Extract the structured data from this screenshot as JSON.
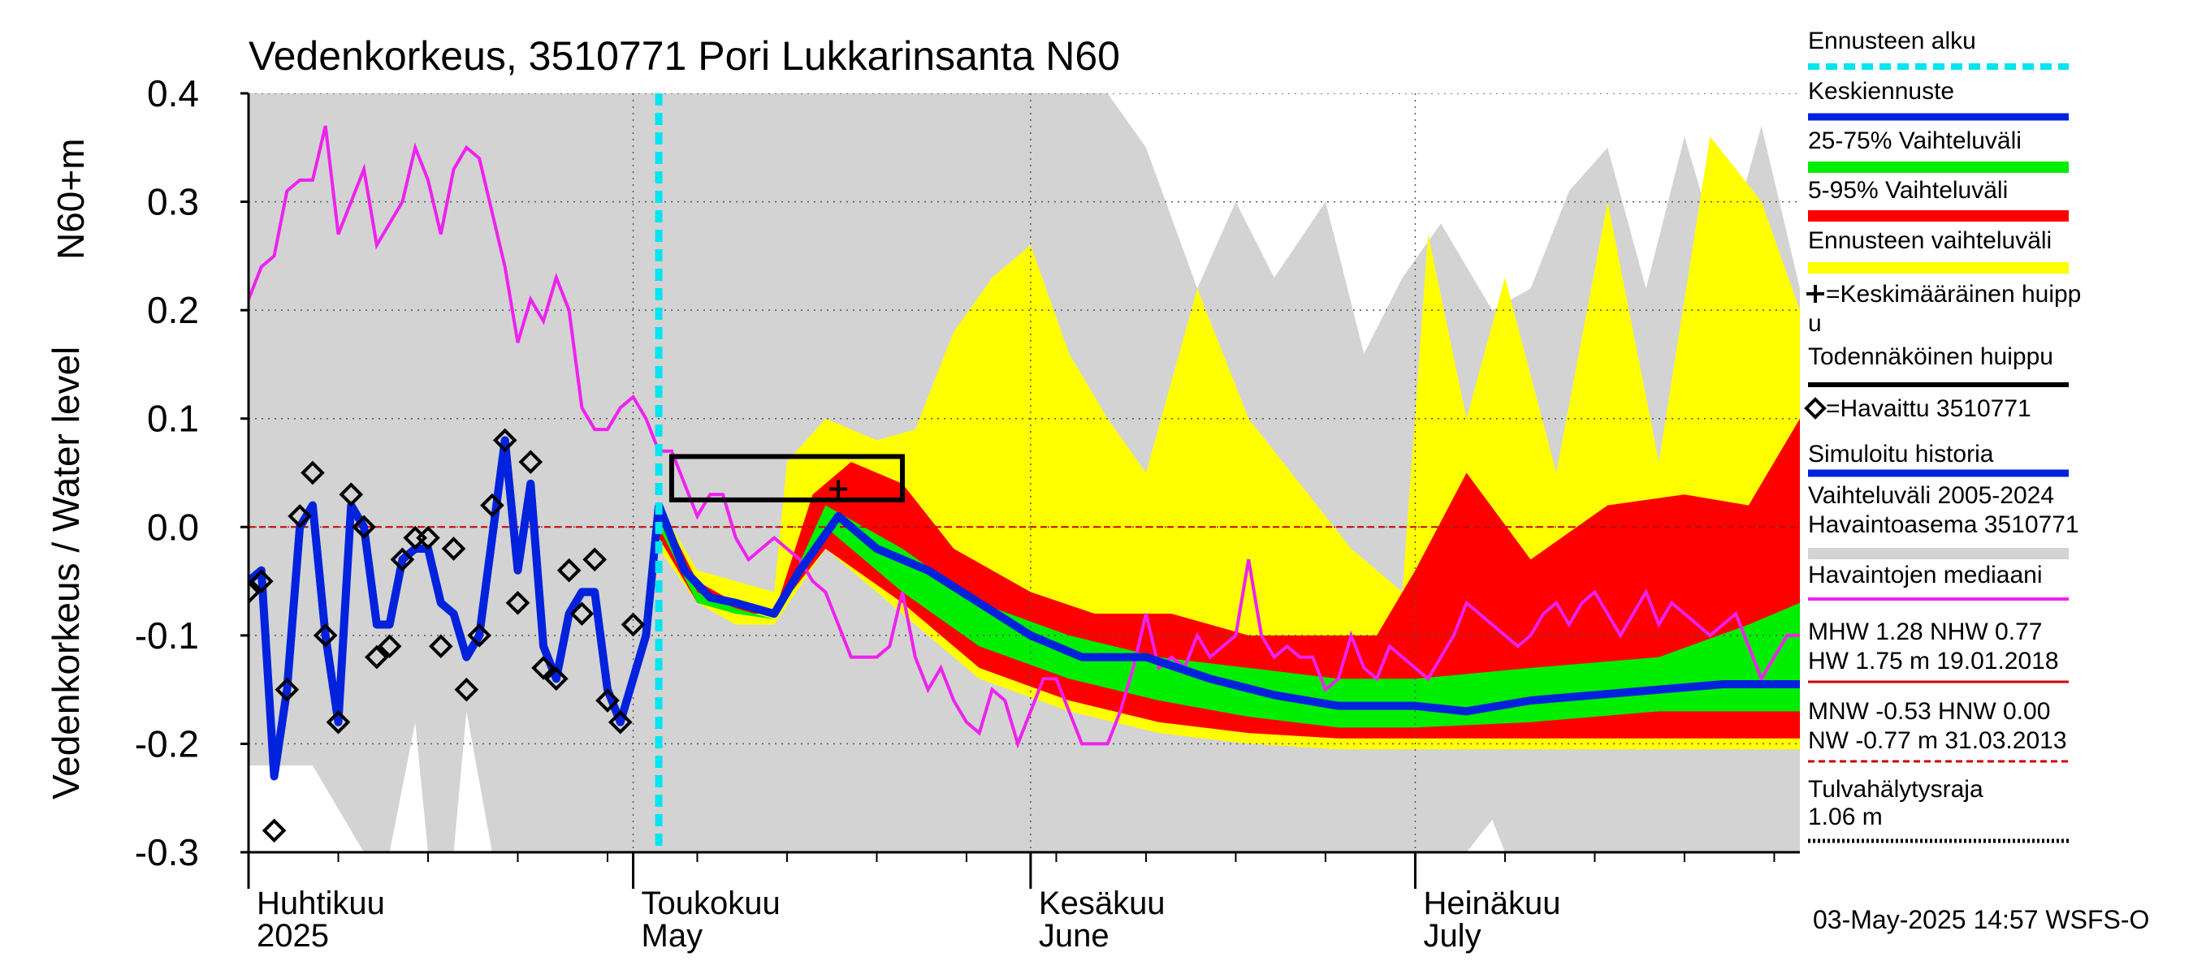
{
  "chart_data": {
    "type": "area",
    "title": "Vedenkorkeus, 3510771 Pori Lukkarinsanta N60",
    "ylabel_top": "N60+m",
    "ylabel_bottom": "Vedenkorkeus / Water level",
    "ylim": [
      -0.3,
      0.4
    ],
    "yticks": [
      "0.4",
      "0.3",
      "0.2",
      "0.1",
      "0.0",
      "-0.1",
      "-0.2",
      "-0.3"
    ],
    "ytick_values": [
      0.4,
      0.3,
      0.2,
      0.1,
      0.0,
      -0.1,
      -0.2,
      -0.3
    ],
    "x_start": "2025-04-01",
    "x_end": "2025-07-31",
    "months": [
      {
        "fi": "Huhtikuu",
        "en": "2025",
        "date": "2025-04-01"
      },
      {
        "fi": "Toukokuu",
        "en": "May",
        "date": "2025-05-01"
      },
      {
        "fi": "Kesäkuu",
        "en": "June",
        "date": "2025-06-01"
      },
      {
        "fi": "Heinäkuu",
        "en": "July",
        "date": "2025-07-01"
      }
    ],
    "forecast_start": "2025-05-03",
    "reference_level": 0.0,
    "probable_peak_box": {
      "date_from": "2025-05-04",
      "date_to": "2025-05-22",
      "low": 0.025,
      "high": 0.065
    },
    "mean_peak": {
      "date": "2025-05-17",
      "value": 0.035
    },
    "historical_range_upper": {
      "dates": [
        "2025-04-01",
        "2025-04-10",
        "2025-04-20",
        "2025-04-30",
        "2025-05-10",
        "2025-05-20",
        "2025-05-31",
        "2025-06-07",
        "2025-06-10",
        "2025-06-14",
        "2025-06-17",
        "2025-06-20",
        "2025-06-24",
        "2025-06-27",
        "2025-06-30",
        "2025-07-03",
        "2025-07-07",
        "2025-07-10",
        "2025-07-13",
        "2025-07-16",
        "2025-07-19",
        "2025-07-22",
        "2025-07-25",
        "2025-07-28",
        "2025-07-31"
      ],
      "values": [
        0.4,
        0.4,
        0.4,
        0.4,
        0.4,
        0.4,
        0.4,
        0.4,
        0.35,
        0.22,
        0.3,
        0.23,
        0.3,
        0.16,
        0.23,
        0.28,
        0.2,
        0.22,
        0.31,
        0.35,
        0.22,
        0.36,
        0.24,
        0.37,
        0.22
      ]
    },
    "historical_range_lower": {
      "dates": [
        "2025-04-01",
        "2025-04-06",
        "2025-04-08",
        "2025-04-10",
        "2025-04-12",
        "2025-04-14",
        "2025-04-15",
        "2025-04-17",
        "2025-04-18",
        "2025-04-20",
        "2025-07-03",
        "2025-07-05",
        "2025-07-07",
        "2025-07-08",
        "2025-07-31"
      ],
      "values": [
        -0.22,
        -0.22,
        -0.26,
        -0.3,
        -0.3,
        -0.18,
        -0.3,
        -0.3,
        -0.17,
        -0.3,
        -0.3,
        -0.3,
        -0.27,
        -0.3,
        -0.3
      ]
    },
    "forecast_range_upper": {
      "dates": [
        "2025-05-03",
        "2025-05-06",
        "2025-05-09",
        "2025-05-12",
        "2025-05-13",
        "2025-05-16",
        "2025-05-20",
        "2025-05-23",
        "2025-05-26",
        "2025-05-29",
        "2025-06-01",
        "2025-06-04",
        "2025-06-07",
        "2025-06-10",
        "2025-06-14",
        "2025-06-18",
        "2025-06-22",
        "2025-06-26",
        "2025-06-30",
        "2025-07-02",
        "2025-07-05",
        "2025-07-08",
        "2025-07-12",
        "2025-07-16",
        "2025-07-20",
        "2025-07-24",
        "2025-07-28",
        "2025-07-31"
      ],
      "values": [
        0.02,
        -0.04,
        -0.05,
        -0.06,
        0.06,
        0.1,
        0.08,
        0.09,
        0.18,
        0.23,
        0.26,
        0.16,
        0.1,
        0.05,
        0.22,
        0.1,
        0.04,
        -0.02,
        -0.06,
        0.27,
        0.1,
        0.23,
        0.05,
        0.3,
        0.06,
        0.36,
        0.3,
        0.2
      ]
    },
    "forecast_range_lower": {
      "dates": [
        "2025-05-03",
        "2025-05-06",
        "2025-05-09",
        "2025-05-12",
        "2025-05-16",
        "2025-05-22",
        "2025-05-28",
        "2025-06-04",
        "2025-06-11",
        "2025-06-18",
        "2025-06-25",
        "2025-07-01",
        "2025-07-10",
        "2025-07-20",
        "2025-07-31"
      ],
      "values": [
        -0.02,
        -0.07,
        -0.09,
        -0.09,
        -0.02,
        -0.08,
        -0.14,
        -0.17,
        -0.19,
        -0.2,
        -0.205,
        -0.205,
        -0.205,
        -0.205,
        -0.205
      ]
    },
    "p5_95_upper": {
      "dates": [
        "2025-05-03",
        "2025-05-06",
        "2025-05-09",
        "2025-05-12",
        "2025-05-15",
        "2025-05-18",
        "2025-05-22",
        "2025-05-26",
        "2025-06-01",
        "2025-06-06",
        "2025-06-12",
        "2025-06-18",
        "2025-06-24",
        "2025-06-28",
        "2025-07-01",
        "2025-07-05",
        "2025-07-10",
        "2025-07-16",
        "2025-07-22",
        "2025-07-27",
        "2025-07-31"
      ],
      "values": [
        0.02,
        -0.05,
        -0.07,
        -0.08,
        0.03,
        0.06,
        0.04,
        -0.02,
        -0.06,
        -0.08,
        -0.08,
        -0.1,
        -0.1,
        -0.1,
        -0.04,
        0.05,
        -0.03,
        0.02,
        0.03,
        0.02,
        0.1
      ]
    },
    "p5_95_lower": {
      "dates": [
        "2025-05-03",
        "2025-05-06",
        "2025-05-09",
        "2025-05-12",
        "2025-05-16",
        "2025-05-22",
        "2025-05-28",
        "2025-06-04",
        "2025-06-11",
        "2025-06-18",
        "2025-06-25",
        "2025-07-01",
        "2025-07-10",
        "2025-07-20",
        "2025-07-31"
      ],
      "values": [
        -0.01,
        -0.07,
        -0.08,
        -0.08,
        -0.02,
        -0.07,
        -0.13,
        -0.16,
        -0.18,
        -0.19,
        -0.195,
        -0.195,
        -0.195,
        -0.195,
        -0.195
      ]
    },
    "p25_75_upper": {
      "dates": [
        "2025-05-03",
        "2025-05-06",
        "2025-05-09",
        "2025-05-12",
        "2025-05-16",
        "2025-05-22",
        "2025-05-28",
        "2025-06-04",
        "2025-06-11",
        "2025-06-18",
        "2025-06-25",
        "2025-07-01",
        "2025-07-10",
        "2025-07-20",
        "2025-07-27",
        "2025-07-31"
      ],
      "values": [
        0.02,
        -0.06,
        -0.075,
        -0.085,
        0.02,
        -0.02,
        -0.07,
        -0.1,
        -0.12,
        -0.13,
        -0.14,
        -0.14,
        -0.13,
        -0.12,
        -0.09,
        -0.07
      ]
    },
    "p25_75_lower": {
      "dates": [
        "2025-05-03",
        "2025-05-06",
        "2025-05-09",
        "2025-05-12",
        "2025-05-16",
        "2025-05-22",
        "2025-05-28",
        "2025-06-04",
        "2025-06-11",
        "2025-06-18",
        "2025-06-25",
        "2025-07-01",
        "2025-07-10",
        "2025-07-20",
        "2025-07-31"
      ],
      "values": [
        0.0,
        -0.07,
        -0.08,
        -0.085,
        0.0,
        -0.06,
        -0.11,
        -0.14,
        -0.16,
        -0.175,
        -0.185,
        -0.185,
        -0.18,
        -0.17,
        -0.17
      ]
    },
    "mean_forecast": {
      "dates": [
        "2025-05-03",
        "2025-05-05",
        "2025-05-07",
        "2025-05-09",
        "2025-05-12",
        "2025-05-14",
        "2025-05-17",
        "2025-05-20",
        "2025-05-24",
        "2025-05-28",
        "2025-06-01",
        "2025-06-05",
        "2025-06-10",
        "2025-06-15",
        "2025-06-20",
        "2025-06-25",
        "2025-07-01",
        "2025-07-05",
        "2025-07-10",
        "2025-07-15",
        "2025-07-20",
        "2025-07-25",
        "2025-07-31"
      ],
      "values": [
        0.02,
        -0.04,
        -0.065,
        -0.07,
        -0.08,
        -0.04,
        0.01,
        -0.02,
        -0.04,
        -0.07,
        -0.1,
        -0.12,
        -0.12,
        -0.14,
        -0.155,
        -0.165,
        -0.165,
        -0.17,
        -0.16,
        -0.155,
        -0.15,
        -0.145,
        -0.145
      ]
    },
    "simulated_history": {
      "dates": [
        "2025-04-01",
        "2025-04-02",
        "2025-04-03",
        "2025-04-04",
        "2025-04-05",
        "2025-04-06",
        "2025-04-07",
        "2025-04-08",
        "2025-04-09",
        "2025-04-10",
        "2025-04-11",
        "2025-04-12",
        "2025-04-13",
        "2025-04-14",
        "2025-04-15",
        "2025-04-16",
        "2025-04-17",
        "2025-04-18",
        "2025-04-19",
        "2025-04-20",
        "2025-04-21",
        "2025-04-22",
        "2025-04-23",
        "2025-04-24",
        "2025-04-25",
        "2025-04-26",
        "2025-04-27",
        "2025-04-28",
        "2025-04-29",
        "2025-04-30",
        "2025-05-01",
        "2025-05-02",
        "2025-05-03"
      ],
      "values": [
        -0.05,
        -0.04,
        -0.23,
        -0.15,
        0.0,
        0.02,
        -0.1,
        -0.18,
        0.02,
        0.0,
        -0.09,
        -0.09,
        -0.03,
        -0.02,
        -0.02,
        -0.07,
        -0.08,
        -0.12,
        -0.1,
        -0.01,
        0.08,
        -0.04,
        0.04,
        -0.11,
        -0.14,
        -0.08,
        -0.06,
        -0.06,
        -0.15,
        -0.18,
        -0.14,
        -0.1,
        0.02
      ]
    },
    "observed": {
      "dates": [
        "2025-04-01",
        "2025-04-02",
        "2025-04-03",
        "2025-04-04",
        "2025-04-05",
        "2025-04-06",
        "2025-04-07",
        "2025-04-08",
        "2025-04-09",
        "2025-04-10",
        "2025-04-11",
        "2025-04-12",
        "2025-04-13",
        "2025-04-14",
        "2025-04-15",
        "2025-04-16",
        "2025-04-17",
        "2025-04-18",
        "2025-04-19",
        "2025-04-20",
        "2025-04-21",
        "2025-04-22",
        "2025-04-23",
        "2025-04-24",
        "2025-04-25",
        "2025-04-26",
        "2025-04-27",
        "2025-04-28",
        "2025-04-29",
        "2025-04-30",
        "2025-05-01"
      ],
      "values": [
        -0.06,
        -0.05,
        -0.28,
        -0.15,
        0.01,
        0.05,
        -0.1,
        -0.18,
        0.03,
        0.0,
        -0.12,
        -0.11,
        -0.03,
        -0.01,
        -0.01,
        -0.11,
        -0.02,
        -0.15,
        -0.1,
        0.02,
        0.08,
        -0.07,
        0.06,
        -0.13,
        -0.14,
        -0.04,
        -0.08,
        -0.03,
        -0.16,
        -0.18,
        -0.09
      ]
    },
    "observations_median": {
      "dates": [
        "2025-04-01",
        "2025-04-02",
        "2025-04-03",
        "2025-04-04",
        "2025-04-05",
        "2025-04-06",
        "2025-04-07",
        "2025-04-08",
        "2025-04-09",
        "2025-04-10",
        "2025-04-11",
        "2025-04-12",
        "2025-04-13",
        "2025-04-14",
        "2025-04-15",
        "2025-04-16",
        "2025-04-17",
        "2025-04-18",
        "2025-04-19",
        "2025-04-20",
        "2025-04-21",
        "2025-04-22",
        "2025-04-23",
        "2025-04-24",
        "2025-04-25",
        "2025-04-26",
        "2025-04-27",
        "2025-04-28",
        "2025-04-29",
        "2025-04-30",
        "2025-05-01",
        "2025-05-02",
        "2025-05-03",
        "2025-05-04",
        "2025-05-05",
        "2025-05-06",
        "2025-05-07",
        "2025-05-08",
        "2025-05-09",
        "2025-05-10",
        "2025-05-11",
        "2025-05-12",
        "2025-05-13",
        "2025-05-14",
        "2025-05-15",
        "2025-05-16",
        "2025-05-17",
        "2025-05-18",
        "2025-05-19",
        "2025-05-20",
        "2025-05-21",
        "2025-05-22",
        "2025-05-23",
        "2025-05-24",
        "2025-05-25",
        "2025-05-26",
        "2025-05-27",
        "2025-05-28",
        "2025-05-29",
        "2025-05-30",
        "2025-05-31",
        "2025-06-01",
        "2025-06-02",
        "2025-06-03",
        "2025-06-04",
        "2025-06-05",
        "2025-06-06",
        "2025-06-07",
        "2025-06-08",
        "2025-06-09",
        "2025-06-10",
        "2025-06-11",
        "2025-06-12",
        "2025-06-13",
        "2025-06-14",
        "2025-06-15",
        "2025-06-16",
        "2025-06-17",
        "2025-06-18",
        "2025-06-19",
        "2025-06-20",
        "2025-06-21",
        "2025-06-22",
        "2025-06-23",
        "2025-06-24",
        "2025-06-25",
        "2025-06-26",
        "2025-06-27",
        "2025-06-28",
        "2025-06-29",
        "2025-06-30",
        "2025-07-01",
        "2025-07-02",
        "2025-07-03",
        "2025-07-04",
        "2025-07-05",
        "2025-07-06",
        "2025-07-07",
        "2025-07-08",
        "2025-07-09",
        "2025-07-10",
        "2025-07-11",
        "2025-07-12",
        "2025-07-13",
        "2025-07-14",
        "2025-07-15",
        "2025-07-16",
        "2025-07-17",
        "2025-07-18",
        "2025-07-19",
        "2025-07-20",
        "2025-07-21",
        "2025-07-22",
        "2025-07-23",
        "2025-07-24",
        "2025-07-25",
        "2025-07-26",
        "2025-07-27",
        "2025-07-28",
        "2025-07-29",
        "2025-07-30",
        "2025-07-31"
      ],
      "values": [
        0.21,
        0.24,
        0.25,
        0.31,
        0.32,
        0.32,
        0.37,
        0.27,
        0.3,
        0.33,
        0.26,
        0.28,
        0.3,
        0.35,
        0.32,
        0.27,
        0.33,
        0.35,
        0.34,
        0.29,
        0.24,
        0.17,
        0.21,
        0.19,
        0.23,
        0.2,
        0.11,
        0.09,
        0.09,
        0.11,
        0.12,
        0.1,
        0.07,
        0.07,
        0.04,
        0.01,
        0.03,
        0.03,
        -0.01,
        -0.03,
        -0.02,
        -0.01,
        -0.02,
        -0.03,
        -0.05,
        -0.06,
        -0.09,
        -0.12,
        -0.12,
        -0.12,
        -0.11,
        -0.06,
        -0.12,
        -0.15,
        -0.13,
        -0.16,
        -0.18,
        -0.19,
        -0.15,
        -0.16,
        -0.2,
        -0.17,
        -0.14,
        -0.14,
        -0.17,
        -0.2,
        -0.2,
        -0.2,
        -0.17,
        -0.13,
        -0.08,
        -0.13,
        -0.12,
        -0.13,
        -0.1,
        -0.12,
        -0.11,
        -0.1,
        -0.03,
        -0.1,
        -0.12,
        -0.11,
        -0.12,
        -0.12,
        -0.15,
        -0.14,
        -0.1,
        -0.13,
        -0.14,
        -0.11,
        -0.12,
        -0.13,
        -0.14,
        -0.12,
        -0.1,
        -0.07,
        -0.08,
        -0.09,
        -0.1,
        -0.11,
        -0.1,
        -0.08,
        -0.07,
        -0.09,
        -0.07,
        -0.06,
        -0.08,
        -0.1,
        -0.08,
        -0.06,
        -0.09,
        -0.07,
        -0.08,
        -0.09,
        -0.1,
        -0.09,
        -0.08,
        -0.11,
        -0.14,
        -0.12,
        -0.1,
        -0.1
      ]
    },
    "colors": {
      "historical_range": "#d3d3d3",
      "forecast_range": "#ffff00",
      "p5_95": "#ff0000",
      "p25_75": "#00ee00",
      "mean_forecast": "#0022dd",
      "simulated_history": "#0022dd",
      "median": "#ee22ee",
      "forecast_start": "#00e5f0",
      "reference_line": "#cc0000"
    }
  },
  "legend": {
    "items": [
      {
        "label": "Ennusteen alku",
        "style": "dashed-cyan"
      },
      {
        "label": "Keskiennuste",
        "style": "blue"
      },
      {
        "label": "25-75% Vaihteluväli",
        "style": "green"
      },
      {
        "label": "5-95% Vaihteluväli",
        "style": "red"
      },
      {
        "label": "Ennusteen vaihteluväli",
        "style": "yellow"
      },
      {
        "label": "=Keskimääräinen huipp",
        "label2": "u",
        "style": "plus"
      },
      {
        "label": "Todennäköinen huippu",
        "style": "black"
      },
      {
        "label": "=Havaittu 3510771",
        "style": "diamond"
      },
      {
        "label": "Simuloitu historia",
        "style": "blue"
      },
      {
        "label": "Vaihteluväli 2005-2024",
        "label2": " Havaintoasema 3510771",
        "style": "gray"
      },
      {
        "label": "Havaintojen mediaani",
        "style": "magenta"
      }
    ],
    "stats1": {
      "line1": "MHW   1.28 NHW   0.77",
      "line2": "HW   1.75 m 19.01.2018"
    },
    "stats2": {
      "line1": "MNW  -0.53 HNW   0.00",
      "line2": "NW  -0.77 m 31.03.2013"
    },
    "flood": {
      "line1": "Tulvahälytysraja",
      "line2": " 1.06 m"
    }
  },
  "footer": {
    "timestamp": "03-May-2025 14:57 WSFS-O"
  }
}
